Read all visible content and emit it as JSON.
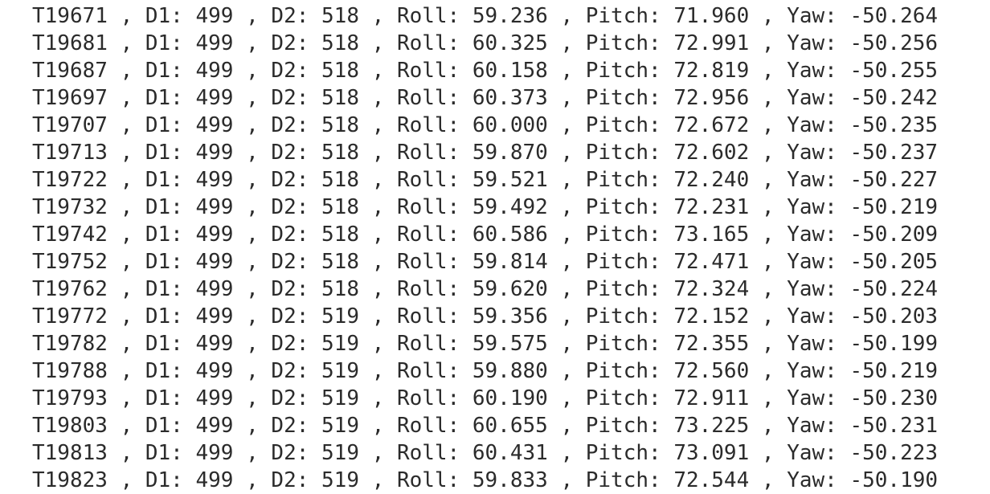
{
  "console": {
    "lines": [
      "T19671 , D1: 499 , D2: 518 , Roll: 59.236 , Pitch: 71.960 , Yaw: -50.264",
      "T19681 , D1: 499 , D2: 518 , Roll: 60.325 , Pitch: 72.991 , Yaw: -50.256",
      "T19687 , D1: 499 , D2: 518 , Roll: 60.158 , Pitch: 72.819 , Yaw: -50.255",
      "T19697 , D1: 499 , D2: 518 , Roll: 60.373 , Pitch: 72.956 , Yaw: -50.242",
      "T19707 , D1: 499 , D2: 518 , Roll: 60.000 , Pitch: 72.672 , Yaw: -50.235",
      "T19713 , D1: 499 , D2: 518 , Roll: 59.870 , Pitch: 72.602 , Yaw: -50.237",
      "T19722 , D1: 499 , D2: 518 , Roll: 59.521 , Pitch: 72.240 , Yaw: -50.227",
      "T19732 , D1: 499 , D2: 518 , Roll: 59.492 , Pitch: 72.231 , Yaw: -50.219",
      "T19742 , D1: 499 , D2: 518 , Roll: 60.586 , Pitch: 73.165 , Yaw: -50.209",
      "T19752 , D1: 499 , D2: 518 , Roll: 59.814 , Pitch: 72.471 , Yaw: -50.205",
      "T19762 , D1: 499 , D2: 518 , Roll: 59.620 , Pitch: 72.324 , Yaw: -50.224",
      "T19772 , D1: 499 , D2: 519 , Roll: 59.356 , Pitch: 72.152 , Yaw: -50.203",
      "T19782 , D1: 499 , D2: 519 , Roll: 59.575 , Pitch: 72.355 , Yaw: -50.199",
      "T19788 , D1: 499 , D2: 519 , Roll: 59.880 , Pitch: 72.560 , Yaw: -50.219",
      "T19793 , D1: 499 , D2: 519 , Roll: 60.190 , Pitch: 72.911 , Yaw: -50.230",
      "T19803 , D1: 499 , D2: 519 , Roll: 60.655 , Pitch: 73.225 , Yaw: -50.231",
      "T19813 , D1: 499 , D2: 519 , Roll: 60.431 , Pitch: 73.091 , Yaw: -50.223",
      "T19823 , D1: 499 , D2: 519 , Roll: 59.833 , Pitch: 72.544 , Yaw: -50.190"
    ]
  }
}
